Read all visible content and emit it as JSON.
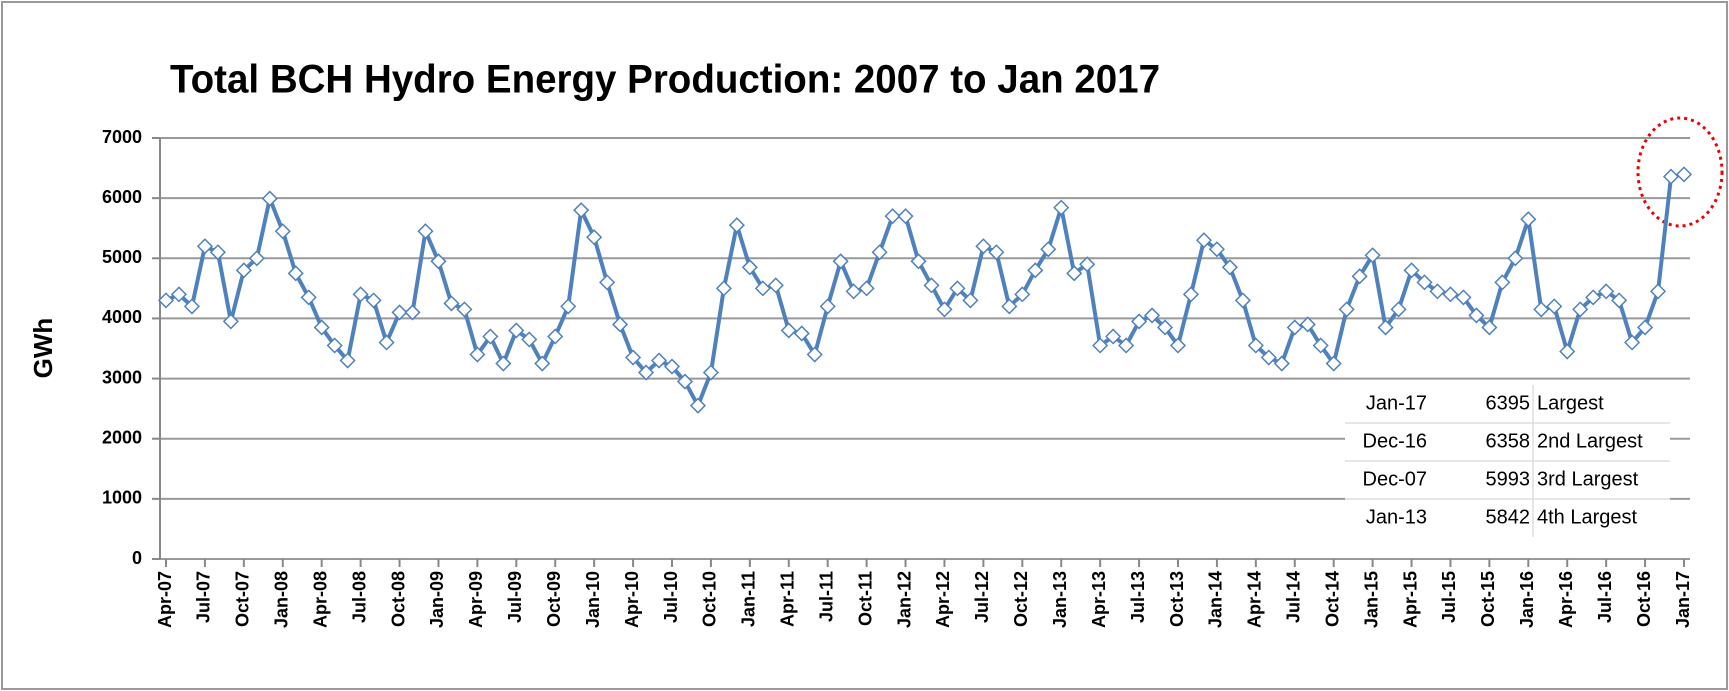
{
  "chart_data": {
    "type": "line",
    "title": "Total BCH Hydro Energy Production: 2007 to Jan 2017",
    "y_label": "GWh",
    "ylim": [
      0,
      7000
    ],
    "yticks": [
      0,
      1000,
      2000,
      3000,
      4000,
      5000,
      6000,
      7000
    ],
    "grid": true,
    "categories": [
      "Apr-07",
      null,
      null,
      "Jul-07",
      null,
      null,
      "Oct-07",
      null,
      null,
      "Jan-08",
      null,
      null,
      "Apr-08",
      null,
      null,
      "Jul-08",
      null,
      null,
      "Oct-08",
      null,
      null,
      "Jan-09",
      null,
      null,
      "Apr-09",
      null,
      null,
      "Jul-09",
      null,
      null,
      "Oct-09",
      null,
      null,
      "Jan-10",
      null,
      null,
      "Apr-10",
      null,
      null,
      "Jul-10",
      null,
      null,
      "Oct-10",
      null,
      null,
      "Jan-11",
      null,
      null,
      "Apr-11",
      null,
      null,
      "Jul-11",
      null,
      null,
      "Oct-11",
      null,
      null,
      "Jan-12",
      null,
      null,
      "Apr-12",
      null,
      null,
      "Jul-12",
      null,
      null,
      "Oct-12",
      null,
      null,
      "Jan-13",
      null,
      null,
      "Apr-13",
      null,
      null,
      "Jul-13",
      null,
      null,
      "Oct-13",
      null,
      null,
      "Jan-14",
      null,
      null,
      "Apr-14",
      null,
      null,
      "Jul-14",
      null,
      null,
      "Oct-14",
      null,
      null,
      "Jan-15",
      null,
      null,
      "Apr-15",
      null,
      null,
      "Jul-15",
      null,
      null,
      "Oct-15",
      null,
      null,
      "Jan-16",
      null,
      null,
      "Apr-16",
      null,
      null,
      "Jul-16",
      null,
      null,
      "Oct-16",
      null,
      null,
      "Jan-17"
    ],
    "series": [
      {
        "name": "GWh",
        "color": "#4f81bd",
        "values": [
          4300,
          4400,
          4200,
          5200,
          5100,
          3950,
          4800,
          5000,
          5993,
          5450,
          4750,
          4350,
          3850,
          3550,
          3300,
          4400,
          4300,
          3600,
          4100,
          4100,
          5450,
          4950,
          4250,
          4150,
          3400,
          3700,
          3250,
          3800,
          3650,
          3250,
          3700,
          4200,
          5800,
          5350,
          4600,
          3900,
          3350,
          3100,
          3300,
          3200,
          2950,
          2550,
          3100,
          4500,
          5550,
          4850,
          4500,
          4550,
          3800,
          3750,
          3400,
          4200,
          4950,
          4450,
          4500,
          5100,
          5700,
          5700,
          4950,
          4550,
          4150,
          4500,
          4300,
          5200,
          5100,
          4200,
          4400,
          4800,
          5150,
          5842,
          4750,
          4900,
          3550,
          3700,
          3550,
          3950,
          4050,
          3850,
          3550,
          4400,
          5300,
          5150,
          4850,
          4300,
          3550,
          3350,
          3250,
          3850,
          3900,
          3550,
          3250,
          4150,
          4700,
          5050,
          3850,
          4150,
          4800,
          4600,
          4450,
          4400,
          4350,
          4050,
          3850,
          4600,
          5000,
          5650,
          4150,
          4200,
          3450,
          4150,
          4350,
          4450,
          4300,
          3600,
          3850,
          4450,
          6358,
          6395
        ]
      }
    ],
    "table": {
      "rows": [
        [
          "Jan-17",
          "6395",
          "Largest"
        ],
        [
          "Dec-16",
          "6358",
          "2nd Largest"
        ],
        [
          "Dec-07",
          "5993",
          "3rd Largest"
        ],
        [
          "Jan-13",
          "5842",
          "4th Largest"
        ]
      ]
    }
  }
}
